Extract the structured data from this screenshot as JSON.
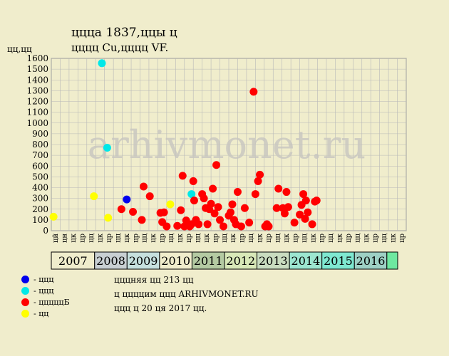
{
  "header": {
    "title": "ццца 1837,ццы ц",
    "subtitle": "цццц Cu,цццц VF.",
    "yunit": "цц,цц"
  },
  "watermark": "arhivmonet.ru",
  "legend": [
    {
      "color": "#0000ee",
      "label": "- ццц"
    },
    {
      "color": "#00e8e8",
      "label": "- ццц"
    },
    {
      "color": "#ff0000",
      "label": "- цццццБ"
    },
    {
      "color": "#ffff00",
      "label": "- цц"
    }
  ],
  "notes": [
    "цццняя цц 213 цц",
    "ц ццццим ццц ARHIVMONET.RU",
    "ццц ц 20 ця 2017 цц."
  ],
  "chart_data": {
    "type": "scatter",
    "ylim": [
      0,
      1600
    ],
    "yticks": [
      0,
      100,
      200,
      300,
      400,
      500,
      600,
      700,
      800,
      900,
      1000,
      1100,
      1200,
      1300,
      1400,
      1500,
      1600
    ],
    "xlim": [
      0,
      40
    ],
    "quarter_labels": [
      "цй",
      "цн",
      "цк",
      "цр",
      "цц",
      "цк",
      "цр",
      "цц",
      "цк",
      "цр",
      "цц",
      "цк",
      "цр",
      "цц",
      "цк",
      "цр",
      "цц",
      "цк",
      "цр",
      "цц",
      "цк",
      "цр",
      "цц",
      "цк",
      "цр",
      "цц",
      "цк",
      "цр",
      "цц",
      "цк",
      "цр",
      "цц",
      "цк",
      "цр",
      "цц",
      "цк",
      "цр",
      "цц",
      "цк",
      "цр"
    ],
    "years": [
      {
        "label": "2007",
        "start": 0,
        "end": 4,
        "color": "#f0edcc"
      },
      {
        "label": "2008",
        "start": 4,
        "end": 7,
        "color": "#c8cfd2"
      },
      {
        "label": "2009",
        "start": 7,
        "end": 10,
        "color": "#c6e0de"
      },
      {
        "label": "2010",
        "start": 10,
        "end": 13,
        "color": "#f0edcc"
      },
      {
        "label": "2011",
        "start": 13,
        "end": 16,
        "color": "#b4caa2"
      },
      {
        "label": "2012",
        "start": 16,
        "end": 19,
        "color": "#d8e8b8"
      },
      {
        "label": "2013",
        "start": 19,
        "end": 22,
        "color": "#c9dcc0"
      },
      {
        "label": "2014",
        "start": 22,
        "end": 25,
        "color": "#9ce6d0"
      },
      {
        "label": "2015",
        "start": 25,
        "end": 28,
        "color": "#7ee8d0"
      },
      {
        "label": "2016",
        "start": 28,
        "end": 31,
        "color": "#9dd0c4"
      },
      {
        "label": "",
        "start": 31,
        "end": 32,
        "color": "#6ee8a0"
      }
    ],
    "series": [
      {
        "color": "#0000ee",
        "points": [
          [
            8.5,
            290
          ]
        ]
      },
      {
        "color": "#00e8e8",
        "points": [
          [
            5.7,
            1555
          ],
          [
            6.3,
            770
          ],
          [
            15.8,
            340
          ]
        ]
      },
      {
        "color": "#ffff00",
        "points": [
          [
            0.25,
            130
          ],
          [
            4.8,
            320
          ],
          [
            6.4,
            120
          ],
          [
            13.4,
            245
          ]
        ]
      },
      {
        "color": "#ff0000",
        "points": [
          [
            7.9,
            200
          ],
          [
            9.2,
            175
          ],
          [
            10.2,
            100
          ],
          [
            10.4,
            410
          ],
          [
            11.1,
            320
          ],
          [
            12.3,
            165
          ],
          [
            12.5,
            80
          ],
          [
            12.7,
            170
          ],
          [
            13.0,
            40
          ],
          [
            14.2,
            45
          ],
          [
            14.6,
            190
          ],
          [
            14.8,
            510
          ],
          [
            15.0,
            40
          ],
          [
            15.2,
            95
          ],
          [
            15.6,
            40
          ],
          [
            15.8,
            60
          ],
          [
            16.0,
            460
          ],
          [
            16.1,
            280
          ],
          [
            16.3,
            100
          ],
          [
            16.6,
            60
          ],
          [
            17.0,
            340
          ],
          [
            17.2,
            300
          ],
          [
            17.4,
            210
          ],
          [
            17.6,
            60
          ],
          [
            17.8,
            200
          ],
          [
            18.0,
            250
          ],
          [
            18.2,
            390
          ],
          [
            18.4,
            160
          ],
          [
            18.6,
            610
          ],
          [
            18.8,
            220
          ],
          [
            19.0,
            100
          ],
          [
            19.4,
            40
          ],
          [
            20.0,
            140
          ],
          [
            20.2,
            170
          ],
          [
            20.4,
            245
          ],
          [
            20.6,
            100
          ],
          [
            20.8,
            60
          ],
          [
            21.0,
            360
          ],
          [
            21.4,
            40
          ],
          [
            21.8,
            210
          ],
          [
            22.3,
            75
          ],
          [
            22.8,
            1290
          ],
          [
            23.0,
            340
          ],
          [
            23.3,
            460
          ],
          [
            23.5,
            520
          ],
          [
            24.1,
            40
          ],
          [
            24.3,
            60
          ],
          [
            24.5,
            40
          ],
          [
            25.4,
            210
          ],
          [
            25.6,
            390
          ],
          [
            26.1,
            210
          ],
          [
            26.3,
            160
          ],
          [
            26.5,
            360
          ],
          [
            26.7,
            220
          ],
          [
            27.4,
            75
          ],
          [
            28.0,
            150
          ],
          [
            28.2,
            240
          ],
          [
            28.4,
            340
          ],
          [
            28.6,
            110
          ],
          [
            28.7,
            280
          ],
          [
            28.9,
            170
          ],
          [
            29.4,
            60
          ],
          [
            29.7,
            270
          ],
          [
            29.9,
            280
          ]
        ]
      }
    ]
  }
}
